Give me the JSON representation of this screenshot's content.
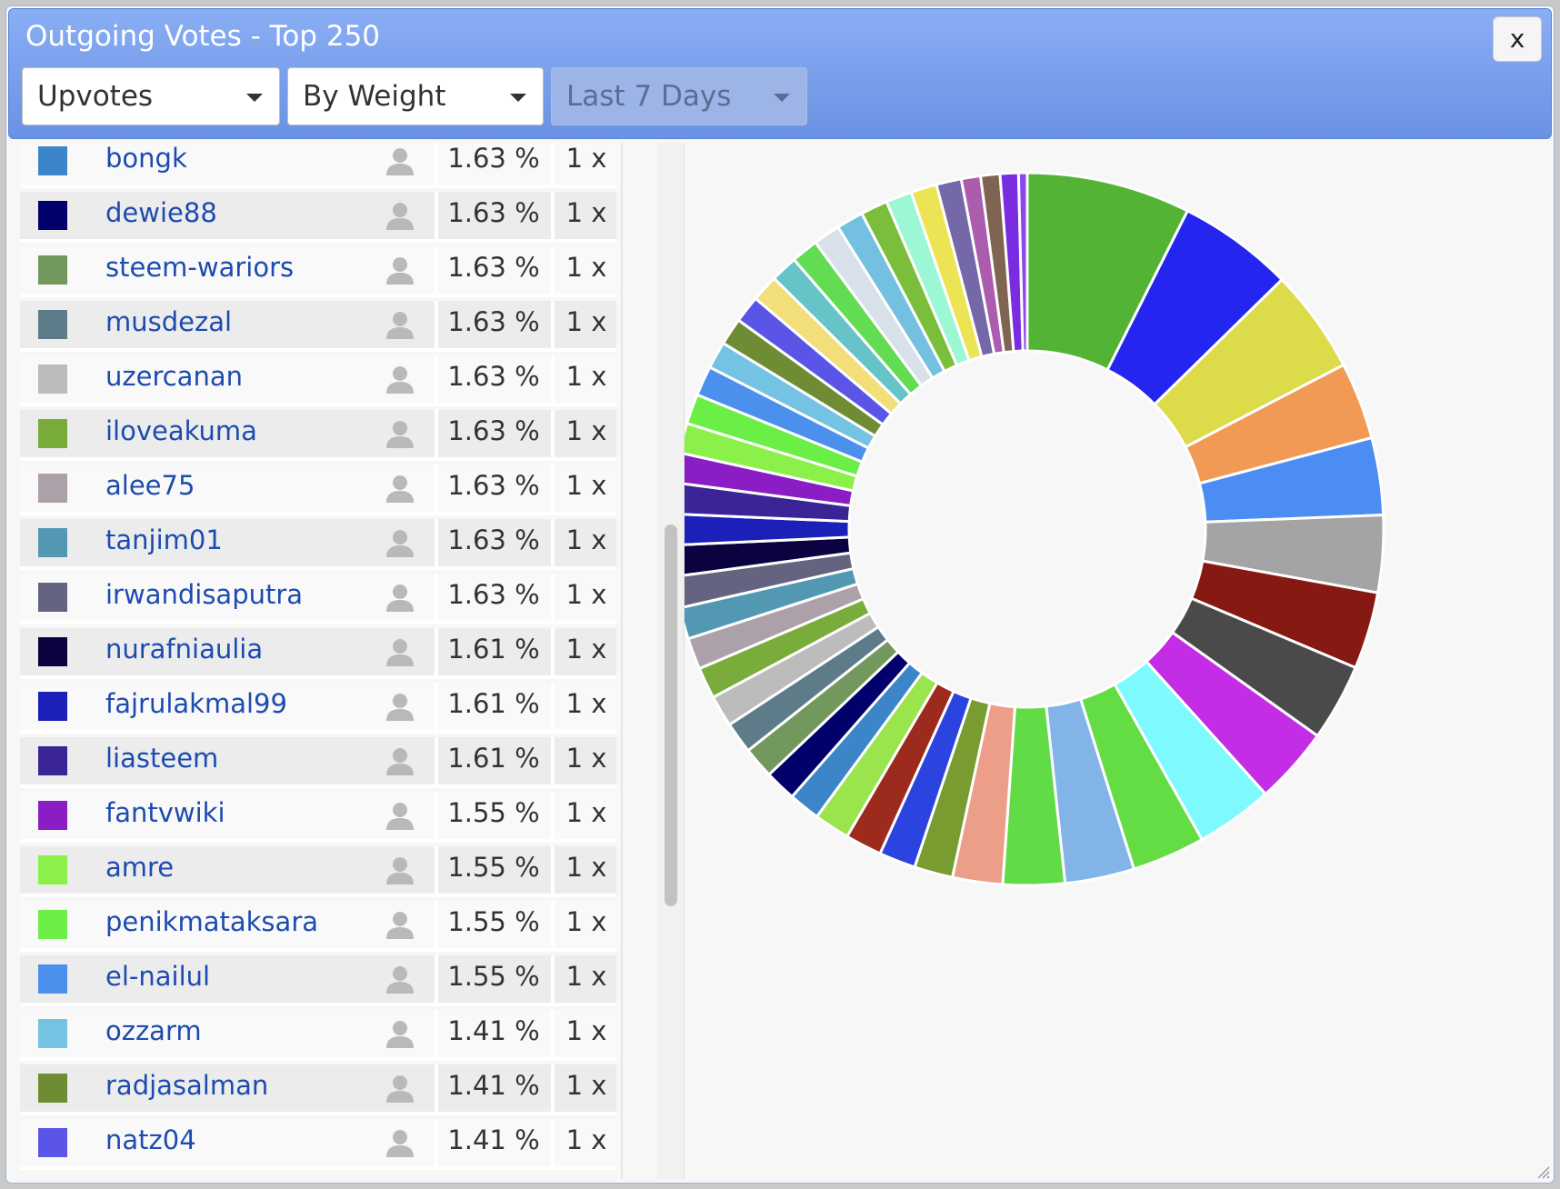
{
  "dialog": {
    "title": "Outgoing Votes - Top 250",
    "close_label": "x"
  },
  "filters": {
    "vote_type": "Upvotes",
    "sort": "By Weight",
    "period": "Last 7 Days"
  },
  "icons": {
    "close": "close-icon",
    "dropdown": "chevron-down-icon",
    "user": "user-icon"
  },
  "rows": [
    {
      "name": "bongk",
      "percent": "1.63 %",
      "count": "1 x",
      "color": "#3c85c8"
    },
    {
      "name": "dewie88",
      "percent": "1.63 %",
      "count": "1 x",
      "color": "#02006b"
    },
    {
      "name": "steem-wariors",
      "percent": "1.63 %",
      "count": "1 x",
      "color": "#72985e"
    },
    {
      "name": "musdezal",
      "percent": "1.63 %",
      "count": "1 x",
      "color": "#5e7b8a"
    },
    {
      "name": "uzercanan",
      "percent": "1.63 %",
      "count": "1 x",
      "color": "#bcbcbc"
    },
    {
      "name": "iloveakuma",
      "percent": "1.63 %",
      "count": "1 x",
      "color": "#7aac3c"
    },
    {
      "name": "alee75",
      "percent": "1.63 %",
      "count": "1 x",
      "color": "#aca1a8"
    },
    {
      "name": "tanjim01",
      "percent": "1.63 %",
      "count": "1 x",
      "color": "#5398b2"
    },
    {
      "name": "irwandisaputra",
      "percent": "1.63 %",
      "count": "1 x",
      "color": "#646480"
    },
    {
      "name": "nurafniaulia",
      "percent": "1.61 %",
      "count": "1 x",
      "color": "#0b0340"
    },
    {
      "name": "fajrulakmal99",
      "percent": "1.61 %",
      "count": "1 x",
      "color": "#1a20b8"
    },
    {
      "name": "liasteem",
      "percent": "1.61 %",
      "count": "1 x",
      "color": "#3b2495"
    },
    {
      "name": "fantvwiki",
      "percent": "1.55 %",
      "count": "1 x",
      "color": "#8a1ec4"
    },
    {
      "name": "amre",
      "percent": "1.55 %",
      "count": "1 x",
      "color": "#8cf04a"
    },
    {
      "name": "penikmataksara",
      "percent": "1.55 %",
      "count": "1 x",
      "color": "#6bee46"
    },
    {
      "name": "el-nailul",
      "percent": "1.55 %",
      "count": "1 x",
      "color": "#4a90ec"
    },
    {
      "name": "ozzarm",
      "percent": "1.41 %",
      "count": "1 x",
      "color": "#74c3e2"
    },
    {
      "name": "radjasalman",
      "percent": "1.41 %",
      "count": "1 x",
      "color": "#6e8c34"
    },
    {
      "name": "natz04",
      "percent": "1.41 %",
      "count": "1 x",
      "color": "#5a55e6"
    }
  ],
  "chart_data": {
    "type": "pie",
    "donut": true,
    "slices": [
      {
        "value": 8.5,
        "color": "#52b335"
      },
      {
        "value": 6.0,
        "color": "#2525f0"
      },
      {
        "value": 5.4,
        "color": "#dcdc4a"
      },
      {
        "value": 4.0,
        "color": "#f09a56"
      },
      {
        "value": 4.0,
        "color": "#4b8df2"
      },
      {
        "value": 4.0,
        "color": "#a4a4a4"
      },
      {
        "value": 4.0,
        "color": "#871913"
      },
      {
        "value": 4.0,
        "color": "#4a4a4a"
      },
      {
        "value": 4.0,
        "color": "#c42de6"
      },
      {
        "value": 4.0,
        "color": "#7efaff"
      },
      {
        "value": 3.8,
        "color": "#64dc44"
      },
      {
        "value": 3.6,
        "color": "#82b4e8"
      },
      {
        "value": 3.2,
        "color": "#62dc46"
      },
      {
        "value": 2.6,
        "color": "#ec9e88"
      },
      {
        "value": 2.0,
        "color": "#789c30"
      },
      {
        "value": 1.9,
        "color": "#2b44e0"
      },
      {
        "value": 1.9,
        "color": "#9c2b1e"
      },
      {
        "value": 1.85,
        "color": "#9ae44e"
      },
      {
        "value": 1.63,
        "color": "#3c85c8"
      },
      {
        "value": 1.63,
        "color": "#02006b"
      },
      {
        "value": 1.63,
        "color": "#72985e"
      },
      {
        "value": 1.63,
        "color": "#5e7b8a"
      },
      {
        "value": 1.63,
        "color": "#bcbcbc"
      },
      {
        "value": 1.63,
        "color": "#7aac3c"
      },
      {
        "value": 1.63,
        "color": "#aca1a8"
      },
      {
        "value": 1.63,
        "color": "#5398b2"
      },
      {
        "value": 1.63,
        "color": "#646480"
      },
      {
        "value": 1.61,
        "color": "#0b0340"
      },
      {
        "value": 1.61,
        "color": "#1a20b8"
      },
      {
        "value": 1.61,
        "color": "#3b2495"
      },
      {
        "value": 1.55,
        "color": "#8a1ec4"
      },
      {
        "value": 1.55,
        "color": "#8cf04a"
      },
      {
        "value": 1.55,
        "color": "#6bee46"
      },
      {
        "value": 1.55,
        "color": "#4a90ec"
      },
      {
        "value": 1.41,
        "color": "#74c3e2"
      },
      {
        "value": 1.41,
        "color": "#6e8c34"
      },
      {
        "value": 1.41,
        "color": "#5a55e6"
      },
      {
        "value": 1.4,
        "color": "#f2df7a"
      },
      {
        "value": 1.4,
        "color": "#66c4c8"
      },
      {
        "value": 1.4,
        "color": "#62dc52"
      },
      {
        "value": 1.4,
        "color": "#d8e0ea"
      },
      {
        "value": 1.4,
        "color": "#74c0e0"
      },
      {
        "value": 1.4,
        "color": "#7abe3c"
      },
      {
        "value": 1.35,
        "color": "#9cf8d4"
      },
      {
        "value": 1.35,
        "color": "#ece454"
      },
      {
        "value": 1.3,
        "color": "#7468a8"
      },
      {
        "value": 1.0,
        "color": "#ac5cac"
      },
      {
        "value": 1.0,
        "color": "#806452"
      },
      {
        "value": 0.95,
        "color": "#7a2ce0"
      },
      {
        "value": 0.45,
        "color": "#8c46f0"
      }
    ]
  }
}
